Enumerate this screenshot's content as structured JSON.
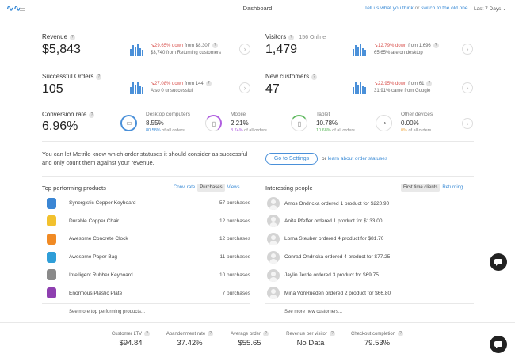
{
  "header": {
    "title": "Dashboard",
    "feedback_link": "Tell us what you think",
    "feedback_or": "or",
    "switch_link": "switch to the old one.",
    "date_range": "Last 7 Days"
  },
  "metrics": {
    "revenue": {
      "label": "Revenue",
      "value": "$5,843",
      "change": "29.65% down",
      "change_from": "from $8,307",
      "detail": "$3,740 from Returning customers"
    },
    "visitors": {
      "label": "Visitors",
      "online": "156 Online",
      "value": "1,479",
      "change": "12.79% down",
      "change_from": "from 1,696",
      "detail": "65.65% are on desktop"
    },
    "orders": {
      "label": "Successful Orders",
      "value": "105",
      "change": "27.08% down",
      "change_from": "from 144",
      "detail": "Also 0 unsuccessful"
    },
    "new_customers": {
      "label": "New customers",
      "value": "47",
      "change": "22.95% down",
      "change_from": "from 61",
      "detail": "31.91% came from Google"
    },
    "conversion": {
      "label": "Conversion rate",
      "value": "6.96%"
    }
  },
  "devices": [
    {
      "label": "Desktop computers",
      "value": "8.55%",
      "share": "80.58%",
      "share_suffix": "of all orders",
      "icon": "monitor-icon",
      "color": "#4a90d9"
    },
    {
      "label": "Mobile",
      "value": "2.21%",
      "share": "8.74%",
      "share_suffix": "of all orders",
      "icon": "mobile-icon",
      "color": "#b05ee0"
    },
    {
      "label": "Tablet",
      "value": "10.78%",
      "share": "10.68%",
      "share_suffix": "of all orders",
      "icon": "tablet-icon",
      "color": "#5cb85c"
    },
    {
      "label": "Other devices",
      "value": "0.00%",
      "share": "0%",
      "share_suffix": "of all orders",
      "icon": "other-device-icon",
      "color": "#f0ad4e"
    }
  ],
  "info": {
    "text": "You can let Metrilo know which order statuses it should consider as successful and only count them against your revenue.",
    "button": "Go to Settings",
    "or_text": "or",
    "learn_link": "learn about order statuses"
  },
  "products": {
    "title": "Top performing products",
    "tabs": [
      "Conv. rate",
      "Purchases",
      "Views"
    ],
    "items": [
      {
        "name": "Synergistic Copper Keyboard",
        "count": "57 purchases",
        "color": "#3b86d4"
      },
      {
        "name": "Durable Copper Chair",
        "count": "12 purchases",
        "color": "#f2c12e"
      },
      {
        "name": "Awesome Concrete Clock",
        "count": "12 purchases",
        "color": "#f08a24"
      },
      {
        "name": "Awesome Paper Bag",
        "count": "11 purchases",
        "color": "#2f9ed8"
      },
      {
        "name": "Intelligent Rubber Keyboard",
        "count": "10 purchases",
        "color": "#8a8a8a"
      },
      {
        "name": "Enormous Plastic Plate",
        "count": "7 purchases",
        "color": "#8e3fb0"
      }
    ],
    "more": "See more top performing products..."
  },
  "people": {
    "title": "Interesting people",
    "tabs": [
      "First time clients",
      "Returning"
    ],
    "items": [
      "Amos Ondricka ordered 1 product for $220.90",
      "Anita Pfeffer ordered 1 product for $133.00",
      "Lorna Steuber ordered 4 product for $81.70",
      "Conrad Ondricka ordered 4 product for $77.25",
      "Jaylin Jerde ordered 3 product for $69.75",
      "Mina VonRueden ordered 2 product for $66.80"
    ],
    "more": "See more new customers..."
  },
  "footer": [
    {
      "label": "Customer LTV",
      "value": "$94.84"
    },
    {
      "label": "Abandonment rate",
      "value": "37.42%"
    },
    {
      "label": "Average order",
      "value": "$55.65"
    },
    {
      "label": "Revenue per visitor",
      "value": "No Data"
    },
    {
      "label": "Checkout completion",
      "value": "79.53%"
    }
  ]
}
